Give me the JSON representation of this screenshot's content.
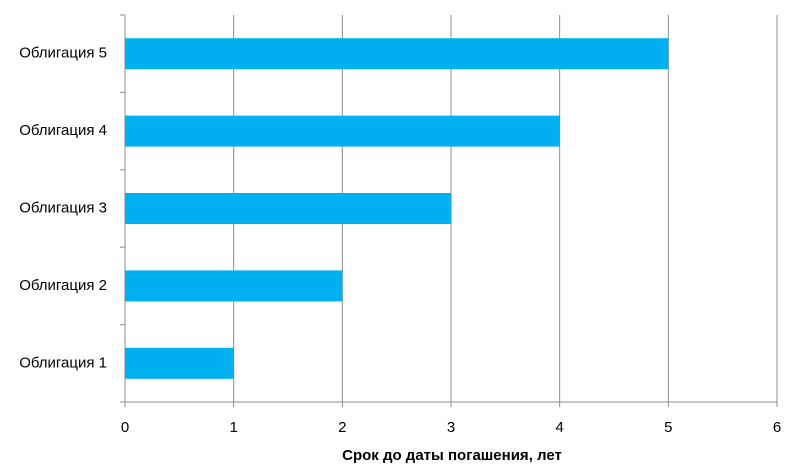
{
  "chart_data": {
    "type": "bar",
    "orientation": "horizontal",
    "categories": [
      "Облигация 1",
      "Облигация 2",
      "Облигация 3",
      "Облигация 4",
      "Облигация 5"
    ],
    "values": [
      1,
      2,
      3,
      4,
      5
    ],
    "color": "#00b0f0",
    "x_label": "Срок до даты погашения, лет",
    "xlim": [
      0,
      6
    ],
    "xticks": [
      0,
      1,
      2,
      3,
      4,
      5,
      6
    ],
    "grid": true
  }
}
